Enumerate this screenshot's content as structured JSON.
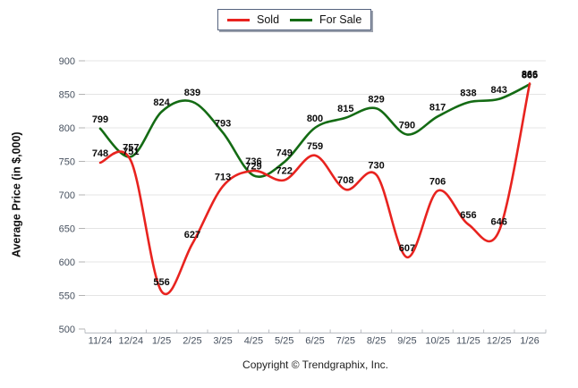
{
  "legend": {
    "items": [
      {
        "label": "Sold",
        "color": "#e8231f"
      },
      {
        "label": "For Sale",
        "color": "#146b14"
      }
    ]
  },
  "footer": {
    "copyright": "Copyright © Trendgraphix, Inc."
  },
  "chart_data": {
    "type": "line",
    "title": "",
    "ylabel": "Average Price (in $,000)",
    "xlabel": "",
    "ylim": [
      500,
      900
    ],
    "ytick_step": 50,
    "y_ticks": [
      500,
      550,
      600,
      650,
      700,
      750,
      800,
      850,
      900
    ],
    "grid": "horizontal",
    "legend_position": "top-center",
    "data_labels": true,
    "categories": [
      "11/24",
      "12/24",
      "1/25",
      "2/25",
      "3/25",
      "4/25",
      "5/25",
      "6/25",
      "7/25",
      "8/25",
      "9/25",
      "10/25",
      "11/25",
      "12/25",
      "1/26"
    ],
    "series": [
      {
        "name": "Sold",
        "color": "#e8231f",
        "values": [
          748,
          751,
          556,
          627,
          713,
          736,
          722,
          759,
          708,
          730,
          607,
          706,
          656,
          646,
          866
        ]
      },
      {
        "name": "For Sale",
        "color": "#146b14",
        "values": [
          799,
          757,
          824,
          839,
          793,
          729,
          749,
          800,
          815,
          829,
          790,
          817,
          838,
          843,
          865
        ]
      }
    ]
  }
}
